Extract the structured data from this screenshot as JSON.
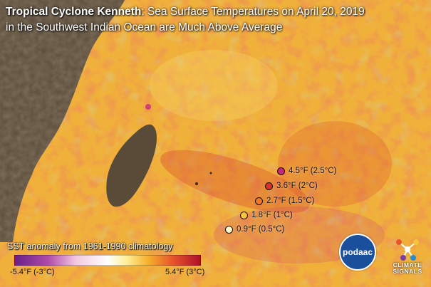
{
  "title": {
    "bold": "Tropical Cyclone Kenneth",
    "rest": ": Sea Surface Temperatures on April 20, 2019",
    "line2": "in the Southwest Indian Ocean are Much Above Average"
  },
  "legend": [
    {
      "label": "4.5°F (2.5°C)",
      "color": "#c8287a"
    },
    {
      "label": "3.6°F (2°C)",
      "color": "#d7332c"
    },
    {
      "label": "2.7°F (1.5°C)",
      "color": "#ef7a2a"
    },
    {
      "label": "1.8°F (1°C)",
      "color": "#f6c33b"
    },
    {
      "label": "0.9°F (0.5°C)",
      "color": "#fff7c8"
    }
  ],
  "colorbar": {
    "title": "SST anomaly from 1961-1990 climatology",
    "min_label": "-5.4°F (-3°C)",
    "max_label": "5.4°F (3°C)"
  },
  "logos": {
    "podaac": "podaac",
    "climate_signals": "CLIMATE SIGNALS"
  },
  "colors": {
    "land": "#5a4a38",
    "ocean_warm": "#f0b13a",
    "ocean_hot": "#d8452a",
    "ocean_cool": "#9fc8b8"
  }
}
